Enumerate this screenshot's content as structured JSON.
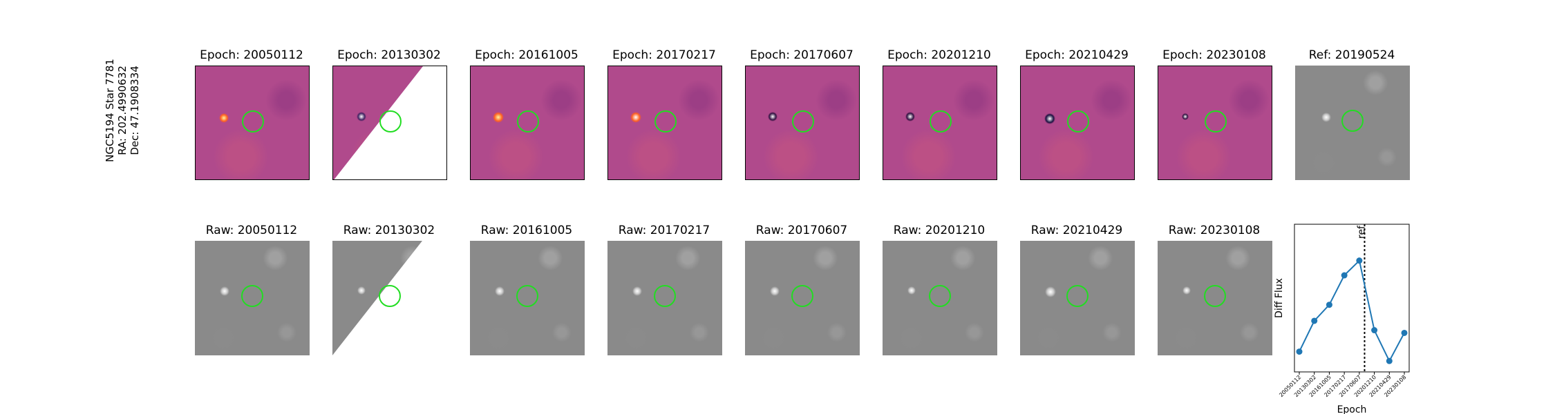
{
  "side_label": {
    "line1": "NGC5194 Star 7781",
    "line2": "RA: 202.4990632",
    "line3": "Dec: 47.1908334"
  },
  "diff_titles": [
    "Epoch: 20050112",
    "Epoch: 20130302",
    "Epoch: 20161005",
    "Epoch: 20170217",
    "Epoch: 20170607",
    "Epoch: 20201210",
    "Epoch: 20210429",
    "Epoch: 20230108"
  ],
  "ref_title": "Ref: 20190524",
  "raw_titles": [
    "Raw: 20050112",
    "Raw: 20130302",
    "Raw: 20161005",
    "Raw: 20170217",
    "Raw: 20170607",
    "Raw: 20201210",
    "Raw: 20210429",
    "Raw: 20230108"
  ],
  "colors": {
    "marker": "#22dd22",
    "line": "#1f77b4",
    "diff_bg": "#b04a8c",
    "raw_bg": "#8a8a8a"
  },
  "chart_data": {
    "type": "line",
    "x": [
      "20050112",
      "20130302",
      "20161005",
      "20170217",
      "20170607",
      "20201210",
      "20210429",
      "20230108"
    ],
    "series": [
      {
        "values": [
          0.1,
          0.33,
          0.45,
          0.67,
          0.78,
          0.26,
          0.03,
          0.24
        ]
      }
    ],
    "xlabel": "Epoch",
    "ylabel": "Diff Flux",
    "ref_line": {
      "label": "ref",
      "position_between": [
        "20170607",
        "20201210"
      ]
    }
  }
}
